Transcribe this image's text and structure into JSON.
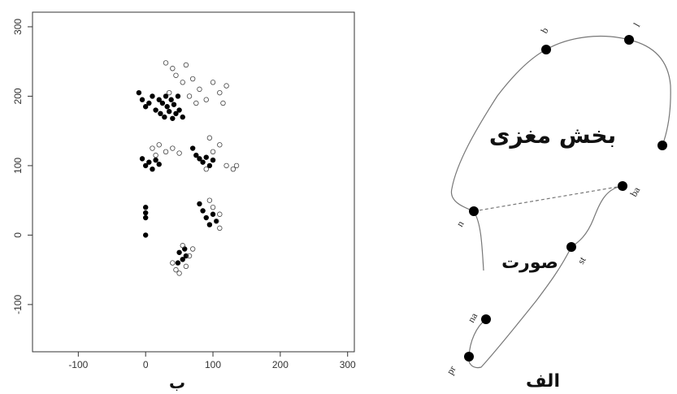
{
  "chart_data": {
    "type": "scatter",
    "xlim": [
      -168,
      310
    ],
    "ylim": [
      -168,
      321
    ],
    "xticks": [
      -100,
      0,
      100,
      200,
      300
    ],
    "yticks": [
      -100,
      0,
      100,
      200,
      300
    ],
    "grid": false,
    "series": [
      {
        "color": "#000000",
        "marker": "filled",
        "x": [
          -10,
          -5,
          0,
          5,
          10,
          15,
          20,
          22,
          25,
          28,
          30,
          32,
          35,
          38,
          40,
          42,
          45,
          48,
          50,
          55,
          -5,
          0,
          5,
          10,
          15,
          20,
          70,
          75,
          80,
          85,
          90,
          95,
          100,
          0,
          0,
          0,
          0,
          80,
          85,
          90,
          95,
          100,
          105,
          50,
          55,
          60,
          48,
          58
        ],
        "y": [
          205,
          195,
          185,
          190,
          200,
          180,
          195,
          175,
          190,
          170,
          200,
          185,
          178,
          195,
          168,
          188,
          175,
          200,
          180,
          170,
          110,
          100,
          105,
          95,
          108,
          102,
          125,
          115,
          110,
          105,
          112,
          100,
          108,
          40,
          32,
          25,
          0,
          45,
          35,
          25,
          15,
          30,
          20,
          -25,
          -35,
          -30,
          -40,
          -20
        ]
      },
      {
        "color": "#444444",
        "marker": "open",
        "x": [
          30,
          40,
          45,
          55,
          60,
          70,
          80,
          90,
          100,
          110,
          120,
          35,
          65,
          75,
          115,
          10,
          15,
          20,
          30,
          40,
          50,
          95,
          100,
          110,
          120,
          130,
          135,
          90,
          95,
          100,
          105,
          110,
          110,
          40,
          45,
          50,
          60,
          65,
          70,
          55
        ],
        "y": [
          248,
          240,
          230,
          220,
          245,
          225,
          210,
          195,
          220,
          205,
          215,
          205,
          200,
          190,
          190,
          125,
          115,
          130,
          120,
          125,
          118,
          140,
          120,
          130,
          100,
          95,
          100,
          95,
          50,
          40,
          20,
          10,
          30,
          -40,
          -50,
          -55,
          -45,
          -30,
          -20,
          -15
        ]
      }
    ]
  },
  "panel_label": "ب",
  "diagram": {
    "title": "الف",
    "regions": [
      "بخش مغزی",
      "صورت"
    ],
    "landmarks": [
      "b",
      "l",
      "ba",
      "n",
      "st",
      "na",
      "pr"
    ]
  }
}
